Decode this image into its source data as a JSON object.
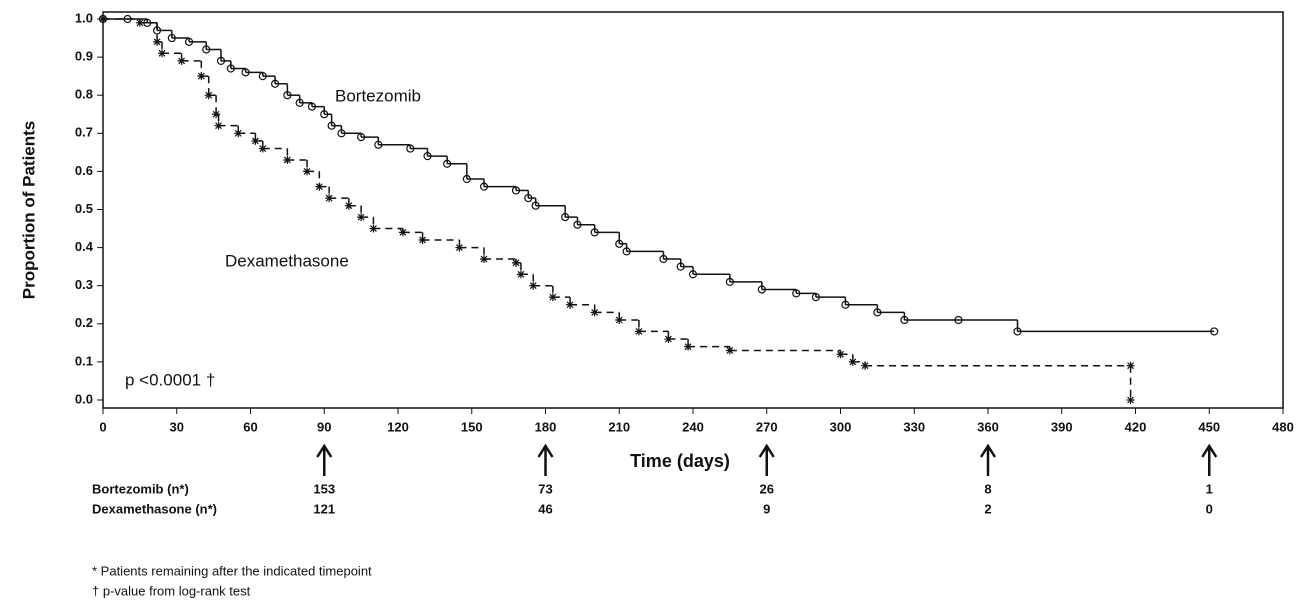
{
  "chart_data": {
    "type": "step",
    "x_label": "Time (days)",
    "y_label": "Proportion of Patients",
    "annotations": [
      "Bortezomib",
      "Dexamethasone",
      "p <0.0001 †"
    ],
    "xlim": [
      0,
      480
    ],
    "xticks": [
      0,
      30,
      60,
      90,
      120,
      150,
      180,
      210,
      240,
      270,
      300,
      330,
      360,
      390,
      420,
      450,
      480
    ],
    "ylim": [
      0,
      1
    ],
    "yticks": [
      {
        "value": 0,
        "label": "0.0"
      },
      0.1,
      0.2,
      0.3,
      0.4,
      0.5,
      0.6,
      0.7,
      0.8,
      0.9,
      {
        "value": 1,
        "label": "1.0"
      }
    ],
    "series": [
      {
        "name": "Bortezomib",
        "color": "#111111",
        "dashed": false,
        "marker": "circle",
        "x": [
          0,
          10,
          18,
          22,
          28,
          35,
          42,
          48,
          52,
          58,
          65,
          70,
          75,
          80,
          85,
          90,
          93,
          97,
          105,
          112,
          125,
          132,
          140,
          148,
          155,
          168,
          173,
          176,
          188,
          193,
          200,
          210,
          213,
          228,
          235,
          240,
          255,
          268,
          282,
          290,
          302,
          315,
          326,
          348,
          372,
          452
        ],
        "values": [
          1.0,
          1.0,
          0.99,
          0.97,
          0.95,
          0.94,
          0.92,
          0.89,
          0.87,
          0.86,
          0.85,
          0.83,
          0.8,
          0.78,
          0.77,
          0.75,
          0.72,
          0.7,
          0.69,
          0.67,
          0.66,
          0.64,
          0.62,
          0.58,
          0.56,
          0.55,
          0.53,
          0.51,
          0.48,
          0.46,
          0.44,
          0.41,
          0.39,
          0.37,
          0.35,
          0.33,
          0.31,
          0.29,
          0.28,
          0.27,
          0.25,
          0.23,
          0.21,
          0.21,
          0.18,
          0.18
        ]
      },
      {
        "name": "Dexamethasone",
        "color": "#111111",
        "dashed": true,
        "marker": "star",
        "x": [
          0,
          15,
          22,
          24,
          32,
          40,
          43,
          46,
          47,
          55,
          62,
          65,
          75,
          83,
          88,
          92,
          100,
          105,
          110,
          122,
          130,
          145,
          155,
          168,
          170,
          175,
          183,
          190,
          200,
          210,
          218,
          230,
          238,
          255,
          300,
          305,
          310,
          418,
          418
        ],
        "values": [
          1.0,
          0.99,
          0.94,
          0.91,
          0.89,
          0.85,
          0.8,
          0.75,
          0.72,
          0.7,
          0.68,
          0.66,
          0.63,
          0.6,
          0.56,
          0.53,
          0.51,
          0.48,
          0.45,
          0.44,
          0.42,
          0.4,
          0.37,
          0.36,
          0.33,
          0.3,
          0.27,
          0.25,
          0.23,
          0.21,
          0.18,
          0.16,
          0.14,
          0.13,
          0.12,
          0.1,
          0.09,
          0.09,
          0.0
        ]
      }
    ],
    "risk_table": {
      "times": [
        90,
        180,
        270,
        360,
        450
      ],
      "rows": [
        {
          "label": "Bortezomib (n*)",
          "values": [
            153,
            73,
            26,
            8,
            1
          ]
        },
        {
          "label": "Dexamethasone (n*)",
          "values": [
            121,
            46,
            9,
            2,
            0
          ]
        }
      ]
    },
    "footnotes": [
      "* Patients remaining after the indicated  timepoint",
      "† p-value from log-rank test"
    ]
  }
}
